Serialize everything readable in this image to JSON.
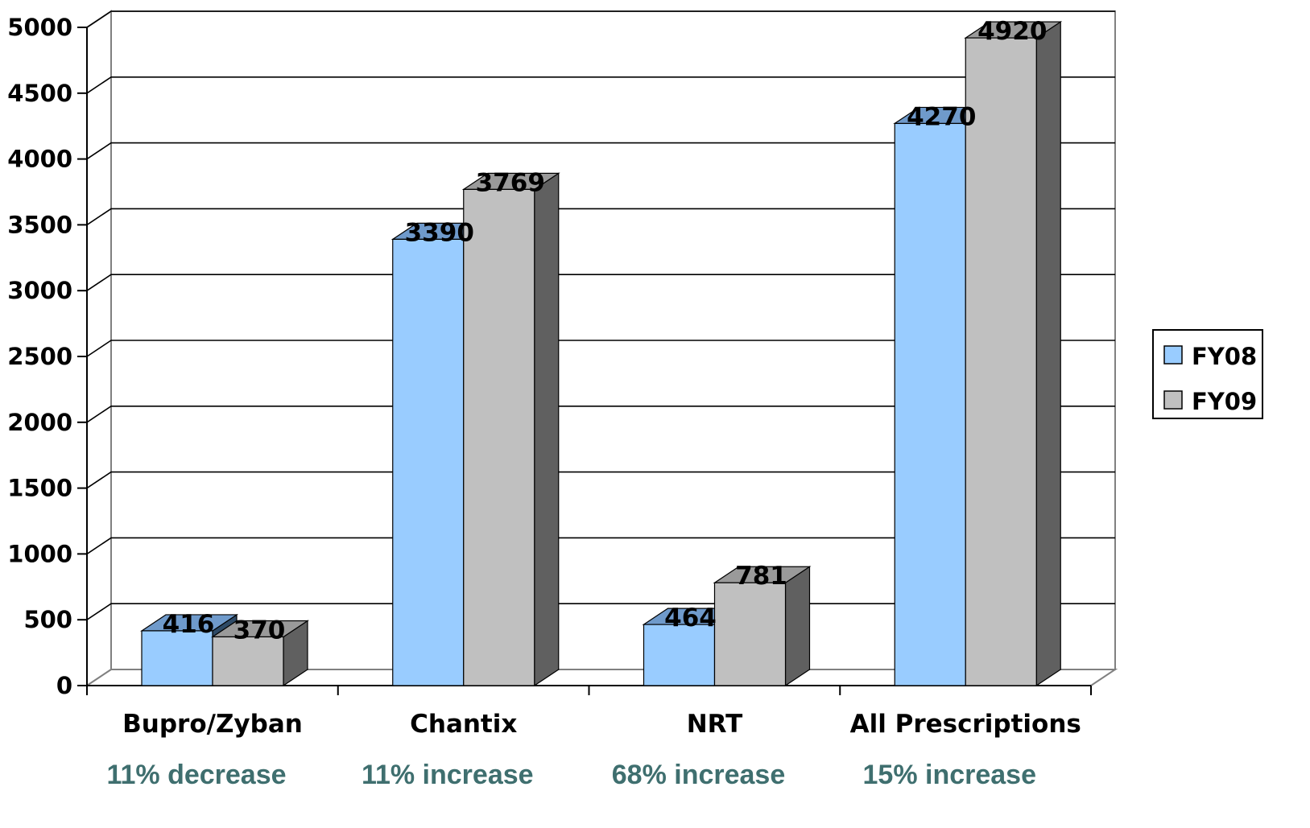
{
  "chart_data": {
    "type": "bar",
    "categories": [
      "Bupro/Zyban",
      "Chantix",
      "NRT",
      "All Prescriptions"
    ],
    "notes": [
      "11% decrease",
      "11% increase",
      "68% increase",
      "15% increase"
    ],
    "series": [
      {
        "name": "FY08",
        "values": [
          416,
          3390,
          464,
          4270
        ]
      },
      {
        "name": "FY09",
        "values": [
          370,
          3769,
          781,
          4920
        ]
      }
    ],
    "data_labels": [
      [
        "416",
        "3390",
        "464",
        "4270"
      ],
      [
        "370",
        "3769",
        "781",
        "4920"
      ]
    ],
    "y_ticks": [
      "0",
      "500",
      "1000",
      "1500",
      "2000",
      "2500",
      "3000",
      "3500",
      "4000",
      "4500",
      "5000"
    ],
    "ylim": [
      0,
      5000
    ],
    "title": "",
    "xlabel": "",
    "ylabel": "",
    "grid": true,
    "three_d": true,
    "legend_position": "right",
    "colors": {
      "FY08_front": "#99ccff",
      "FY08_side": "#2e4a66",
      "FY08_top": "#6f9acb",
      "FY09_front": "#c0c0c0",
      "FY09_side": "#606060",
      "FY09_top": "#9a9a9a",
      "note": "#3f6f6f"
    }
  }
}
